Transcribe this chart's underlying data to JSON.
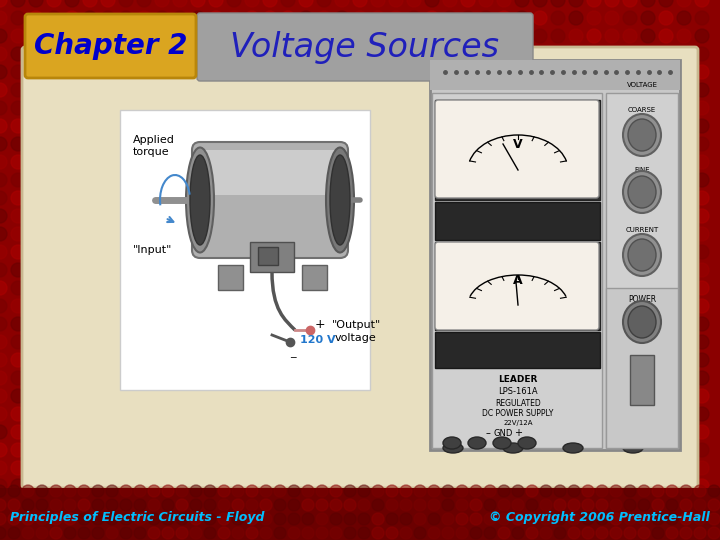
{
  "bg_color": "#8B0000",
  "slide_bg_color": "#E8DFC0",
  "chapter_box_color": "#DAA520",
  "chapter_box_text": "Chapter 2",
  "chapter_box_text_color": "#0000CC",
  "title_box_color": "#A0A0A0",
  "title_text": "Voltage Sources",
  "title_text_color": "#2020BB",
  "footer_left": "Principles of Electric Circuits - Floyd",
  "footer_right": "© Copyright 2006 Prentice-Hall",
  "footer_color": "#00BFFF",
  "fig_w": 7.2,
  "fig_h": 5.4,
  "dpi": 100
}
